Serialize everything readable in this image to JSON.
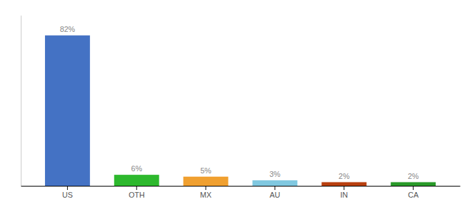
{
  "chart_data": {
    "type": "bar",
    "categories": [
      "US",
      "OTH",
      "MX",
      "AU",
      "IN",
      "CA"
    ],
    "values": [
      82,
      6,
      5,
      3,
      2,
      2
    ],
    "value_labels": [
      "82%",
      "6%",
      "5%",
      "3%",
      "2%",
      "2%"
    ],
    "colors": [
      "#4472c4",
      "#2db82d",
      "#f0a030",
      "#80c8e0",
      "#b84010",
      "#2a9a2a"
    ],
    "ylim": [
      0,
      93
    ],
    "data_labels": true,
    "tick_labels": "x"
  }
}
